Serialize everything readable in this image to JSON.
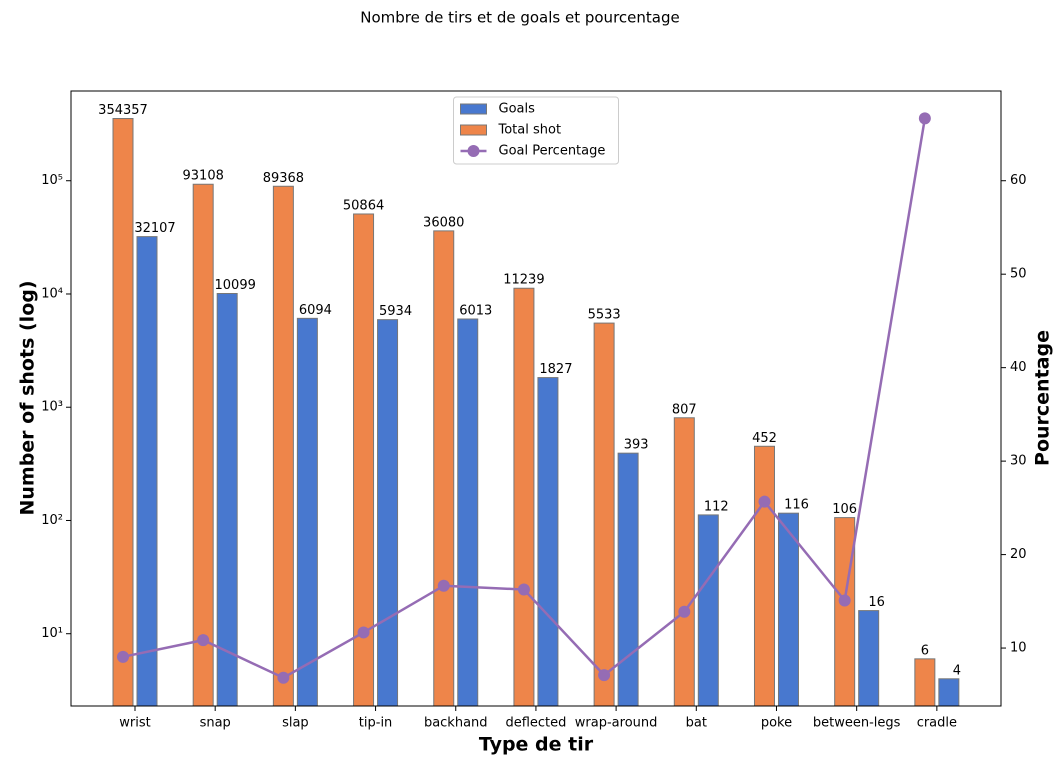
{
  "chart_data": {
    "type": "bar_line",
    "title": "Nombre de tirs et de goals et pourcentage",
    "x_label": "Type de tir",
    "y_label": "Number of shots (log)",
    "y2_label": "Pourcentage",
    "categories": [
      "wrist",
      "snap",
      "slap",
      "tip-in",
      "backhand",
      "deflected",
      "wrap-around",
      "bat",
      "poke",
      "between-legs",
      "cradle"
    ],
    "series": [
      {
        "name": "Goals",
        "color": "#4878cf",
        "type": "bar",
        "values": [
          32107,
          10099,
          6094,
          5934,
          6013,
          1827,
          393,
          112,
          116,
          16,
          4
        ]
      },
      {
        "name": "Total shot",
        "color": "#ee854a",
        "type": "bar",
        "values": [
          354357,
          93108,
          89368,
          50864,
          36080,
          11239,
          5533,
          807,
          452,
          106,
          6
        ]
      },
      {
        "name": "Goal Percentage",
        "color": "#956cb4",
        "type": "line",
        "axis": "y2",
        "values": [
          9.06,
          10.85,
          6.82,
          11.67,
          16.67,
          16.26,
          7.1,
          13.88,
          25.66,
          15.09,
          66.67
        ]
      }
    ],
    "log_y": true,
    "ylim": [
      2.3,
      620000
    ],
    "yticks": [
      {
        "value": 10,
        "label": "10¹"
      },
      {
        "value": 100,
        "label": "10²"
      },
      {
        "value": 1000,
        "label": "10³"
      },
      {
        "value": 10000,
        "label": "10⁴"
      },
      {
        "value": 100000,
        "label": "10⁵"
      }
    ],
    "y2lim": [
      3.8,
      69.6
    ],
    "y2ticks": [
      10,
      20,
      30,
      40,
      50,
      60
    ],
    "legend": "upper center"
  }
}
